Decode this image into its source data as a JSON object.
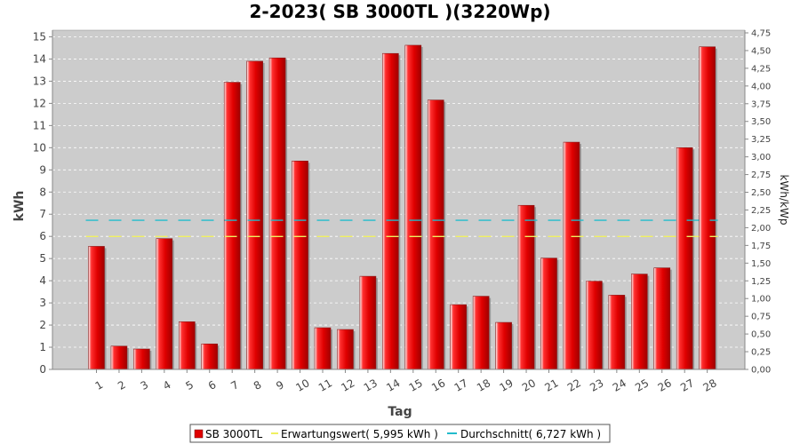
{
  "chart_data": {
    "type": "bar",
    "title": "2-2023( SB 3000TL )(3220Wp)",
    "xlabel": "Tag",
    "ylabel": "kWh",
    "ylabel_right": "kWh/kWp",
    "categories": [
      "1",
      "2",
      "3",
      "4",
      "5",
      "6",
      "7",
      "8",
      "9",
      "10",
      "11",
      "12",
      "13",
      "14",
      "15",
      "16",
      "17",
      "18",
      "19",
      "20",
      "21",
      "22",
      "23",
      "24",
      "25",
      "26",
      "27",
      "28"
    ],
    "series": [
      {
        "name": "SB 3000TL",
        "color": "#e00000",
        "values": [
          5.55,
          1.05,
          0.92,
          5.9,
          2.15,
          1.15,
          12.95,
          13.9,
          14.05,
          9.4,
          1.88,
          1.8,
          4.2,
          14.25,
          14.62,
          12.15,
          2.92,
          3.3,
          2.12,
          7.4,
          5.02,
          10.25,
          3.98,
          3.35,
          4.3,
          4.58,
          10.0,
          14.55
        ]
      }
    ],
    "reference_lines": [
      {
        "name": "Erwartungswert( 5,995 kWh )",
        "value": 5.995,
        "color": "#f0f060"
      },
      {
        "name": "Durchschnitt( 6,727 kWh )",
        "value": 6.727,
        "color": "#22bbcc"
      }
    ],
    "ylim": [
      0,
      15.3
    ],
    "yticks": [
      "0",
      "1",
      "2",
      "3",
      "4",
      "5",
      "6",
      "7",
      "8",
      "9",
      "10",
      "11",
      "12",
      "13",
      "14",
      "15"
    ],
    "ylim_right": [
      0,
      4.75
    ],
    "yticks_right": [
      "0,00",
      "0,25",
      "0,50",
      "0,75",
      "1,00",
      "1,25",
      "1,50",
      "1,75",
      "2,00",
      "2,25",
      "2,50",
      "2,75",
      "3,00",
      "3,25",
      "3,50",
      "3,75",
      "4,00",
      "4,25",
      "4,50",
      "4,75"
    ],
    "legend": [
      "SB 3000TL",
      "Erwartungswert( 5,995 kWh )",
      "Durchschnitt( 6,727 kWh )"
    ],
    "legend_position": "bottom",
    "plot_background": "#cccccc",
    "grid": true
  }
}
